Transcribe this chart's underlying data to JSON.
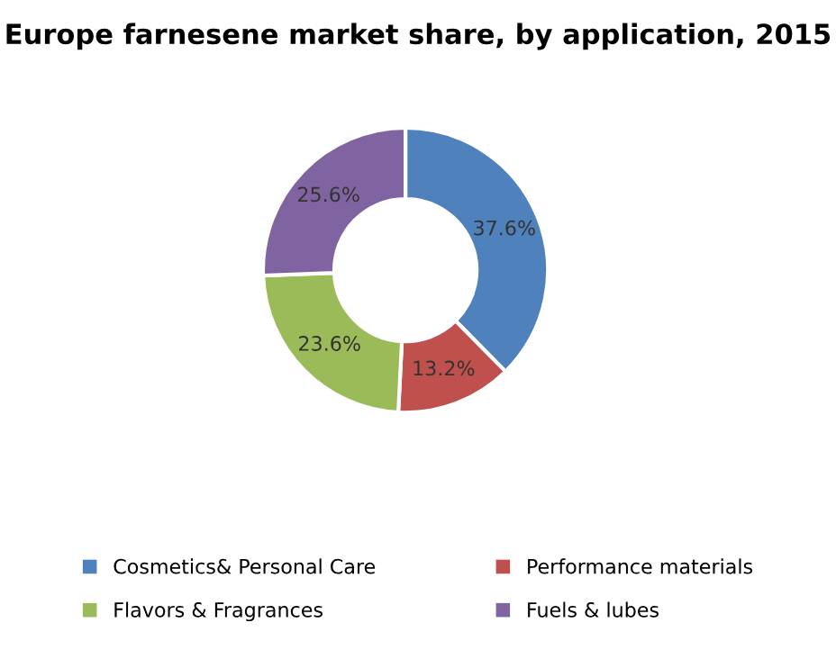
{
  "chart_data": {
    "type": "donut",
    "title": "Europe farnesene market share, by application, 2015",
    "categories": [
      "Cosmetics& Personal Care",
      "Performance materials",
      "Flavors & Fragrances",
      "Fuels & lubes"
    ],
    "values": [
      37.6,
      13.2,
      23.6,
      25.6
    ],
    "colors": [
      "#4f81bd",
      "#c0504d",
      "#9bbb59",
      "#8064a2"
    ],
    "value_labels": [
      "37.6%",
      "13.2%",
      "23.6%",
      "25.6%"
    ],
    "legend": "bottom"
  }
}
